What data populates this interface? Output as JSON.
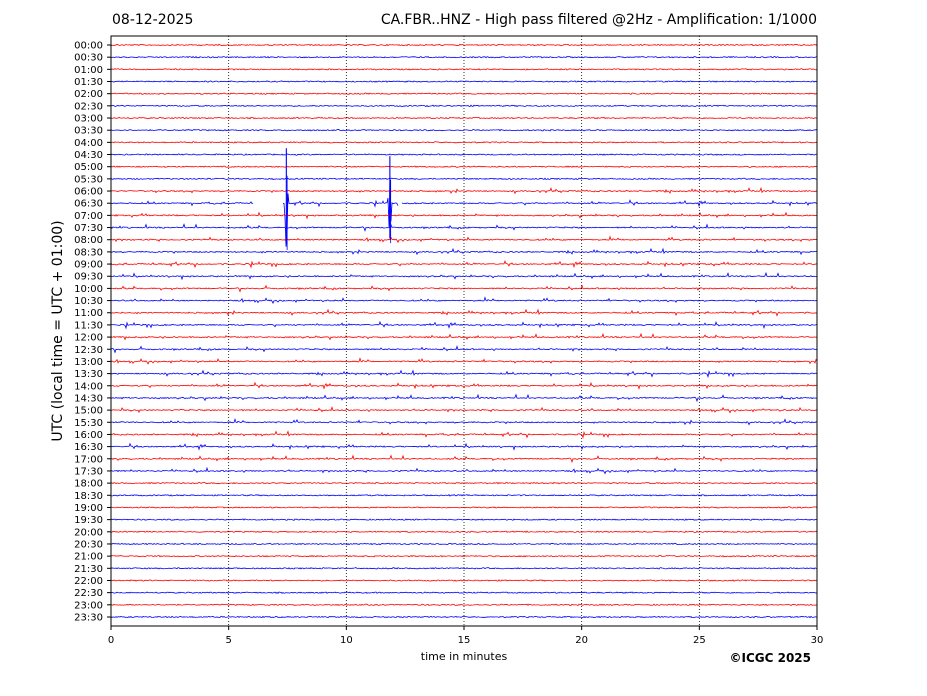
{
  "header": {
    "date": "08-12-2025",
    "title": "CA.FBR..HNZ - High pass filtered @2Hz - Amplification: 1/1000"
  },
  "footer": {
    "copyright": "©ICGC 2025"
  },
  "chart_data": {
    "type": "line",
    "title": "CA.FBR..HNZ - High pass filtered @2Hz - Amplification: 1/1000",
    "xlabel": "time in minutes",
    "ylabel": "UTC (local time = UTC + 01:00)",
    "xlim": [
      0,
      30
    ],
    "xticks": [
      0,
      5,
      10,
      15,
      20,
      25,
      30
    ],
    "vertical_gridlines_at": [
      5,
      10,
      15,
      20,
      25
    ],
    "trace_colors": [
      "#ff0000",
      "#0000ff"
    ],
    "rows": [
      "00:00",
      "00:30",
      "01:00",
      "01:30",
      "02:00",
      "02:30",
      "03:00",
      "03:30",
      "04:00",
      "04:30",
      "05:00",
      "05:30",
      "06:00",
      "06:30",
      "07:00",
      "07:30",
      "08:00",
      "08:30",
      "09:00",
      "09:30",
      "10:00",
      "10:30",
      "11:00",
      "11:30",
      "12:00",
      "12:30",
      "13:00",
      "13:30",
      "14:00",
      "14:30",
      "15:00",
      "15:30",
      "16:00",
      "16:30",
      "17:00",
      "17:30",
      "18:00",
      "18:30",
      "19:00",
      "19:30",
      "20:00",
      "20:30",
      "21:00",
      "21:30",
      "22:00",
      "22:30",
      "23:00",
      "23:30"
    ],
    "large_events": [
      {
        "row": "06:30",
        "minute": 7.45,
        "amplitude": 55,
        "color": "#0000ff"
      },
      {
        "row": "06:30",
        "minute": 11.85,
        "amplitude": 47,
        "color": "#0000ff"
      }
    ],
    "gaps": [
      {
        "row": "06:30",
        "from": 6.05,
        "to": 7.3
      },
      {
        "row": "06:30",
        "from": 12.2,
        "to": 12.35
      }
    ],
    "activity_rows": [
      "06:00",
      "06:30",
      "07:00",
      "07:30",
      "08:00",
      "08:30",
      "09:00",
      "09:30",
      "10:00",
      "10:30",
      "11:00",
      "11:30",
      "12:00",
      "12:30",
      "13:00",
      "13:30",
      "14:00",
      "14:30",
      "15:00",
      "15:30",
      "16:00",
      "16:30",
      "17:00",
      "17:30"
    ]
  }
}
